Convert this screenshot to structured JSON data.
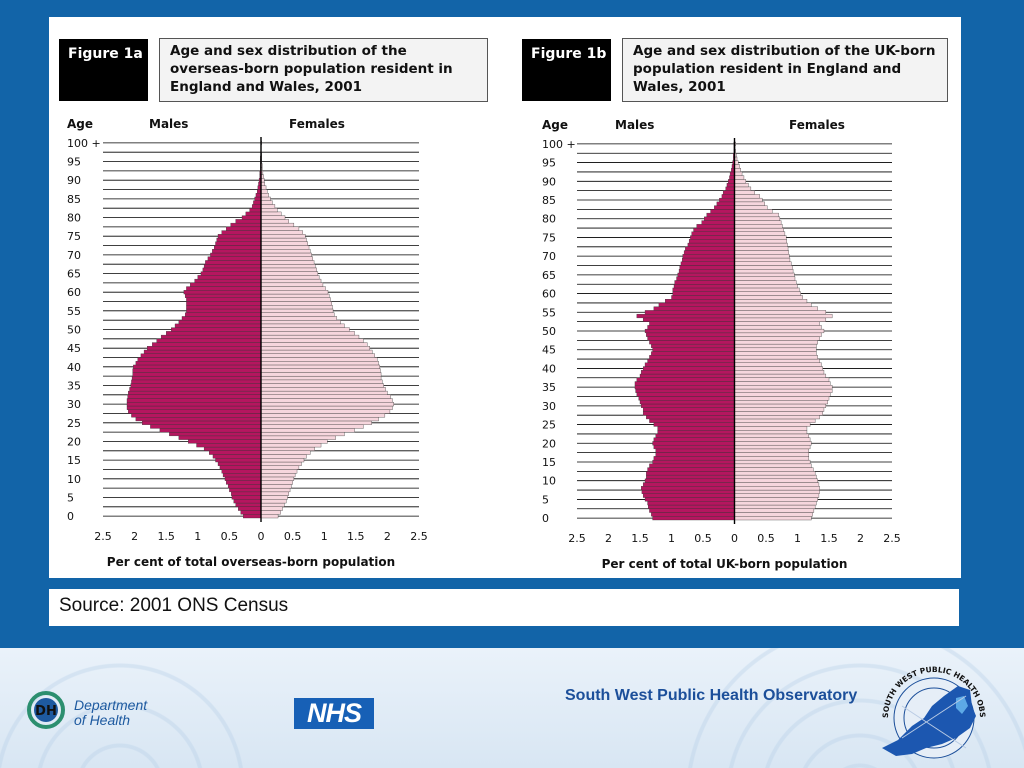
{
  "figures": [
    {
      "tag": "Figure 1a",
      "title": "Age and sex distribution of the overseas-born population resident in England and Wales, 2001"
    },
    {
      "tag": "Figure 1b",
      "title": "Age and sex distribution of the UK-born population resident in England and Wales, 2001"
    }
  ],
  "source": "Source: 2001 ONS Census",
  "footer": {
    "dh_abbr": "DH",
    "dh_line1": "Department",
    "dh_line2": "of Health",
    "nhs": "NHS",
    "observatory": "South West Public Health Observatory",
    "seal_text": "SOUTH WEST PUBLIC HEALTH OBSERVATORY"
  },
  "colors": {
    "background": "#1264a8",
    "male_fill": "#b5165f",
    "female_fill": "#f6d6dd",
    "bar_stroke": "#333333",
    "footer_text": "#1c4f9a"
  },
  "chart_data": [
    {
      "type": "bar",
      "orientation": "horizontal-population-pyramid",
      "title": "Age and sex distribution of the overseas-born population resident in England and Wales, 2001",
      "age_axis_label": "Age",
      "age_tick_labels": [
        "0",
        "5",
        "10",
        "15",
        "20",
        "25",
        "30",
        "35",
        "40",
        "45",
        "50",
        "55",
        "60",
        "65",
        "70",
        "75",
        "80",
        "85",
        "90",
        "95",
        "100 +"
      ],
      "xlabel": "Per cent of total overseas-born population",
      "x_tick_labels": [
        "2.5",
        "2",
        "1.5",
        "1",
        "0.5",
        "0",
        "0.5",
        "1",
        "1.5",
        "2",
        "2.5"
      ],
      "xlim": [
        -2.5,
        2.5
      ],
      "grid": true,
      "legend": [
        "Males",
        "Females"
      ],
      "age_groups": "single years 0 to 100+",
      "series": [
        {
          "name": "Males",
          "values": [
            0.28,
            0.32,
            0.36,
            0.4,
            0.43,
            0.46,
            0.47,
            0.5,
            0.52,
            0.55,
            0.57,
            0.6,
            0.62,
            0.65,
            0.68,
            0.72,
            0.76,
            0.82,
            0.9,
            1.02,
            1.15,
            1.3,
            1.45,
            1.6,
            1.75,
            1.88,
            1.98,
            2.05,
            2.1,
            2.12,
            2.12,
            2.12,
            2.11,
            2.1,
            2.08,
            2.06,
            2.05,
            2.04,
            2.03,
            2.03,
            2.02,
            1.98,
            1.95,
            1.9,
            1.85,
            1.8,
            1.72,
            1.65,
            1.58,
            1.5,
            1.42,
            1.36,
            1.3,
            1.25,
            1.2,
            1.18,
            1.18,
            1.18,
            1.18,
            1.2,
            1.22,
            1.18,
            1.12,
            1.05,
            1.0,
            0.95,
            0.92,
            0.9,
            0.88,
            0.84,
            0.8,
            0.77,
            0.74,
            0.72,
            0.7,
            0.68,
            0.62,
            0.55,
            0.48,
            0.4,
            0.3,
            0.24,
            0.18,
            0.14,
            0.12,
            0.1,
            0.08,
            0.06,
            0.05,
            0.04,
            0.03,
            0.02,
            0.02,
            0.01,
            0.01,
            0.01,
            0.01,
            0.0,
            0.0,
            0.0,
            0.0
          ]
        },
        {
          "name": "Females",
          "values": [
            0.27,
            0.31,
            0.34,
            0.37,
            0.4,
            0.42,
            0.44,
            0.46,
            0.48,
            0.5,
            0.52,
            0.54,
            0.57,
            0.6,
            0.64,
            0.68,
            0.72,
            0.78,
            0.85,
            0.95,
            1.05,
            1.18,
            1.32,
            1.48,
            1.62,
            1.75,
            1.86,
            1.96,
            2.04,
            2.08,
            2.1,
            2.08,
            2.05,
            2.0,
            1.97,
            1.94,
            1.92,
            1.9,
            1.9,
            1.89,
            1.88,
            1.86,
            1.84,
            1.8,
            1.76,
            1.72,
            1.68,
            1.62,
            1.55,
            1.48,
            1.4,
            1.32,
            1.26,
            1.2,
            1.16,
            1.14,
            1.13,
            1.12,
            1.1,
            1.08,
            1.06,
            1.02,
            0.98,
            0.95,
            0.92,
            0.9,
            0.88,
            0.86,
            0.84,
            0.82,
            0.8,
            0.78,
            0.76,
            0.74,
            0.72,
            0.7,
            0.66,
            0.6,
            0.52,
            0.44,
            0.38,
            0.32,
            0.26,
            0.22,
            0.18,
            0.15,
            0.12,
            0.1,
            0.08,
            0.06,
            0.05,
            0.04,
            0.03,
            0.02,
            0.02,
            0.01,
            0.01,
            0.01,
            0.0,
            0.0,
            0.01
          ]
        }
      ]
    },
    {
      "type": "bar",
      "orientation": "horizontal-population-pyramid",
      "title": "Age and sex distribution of the UK-born population resident in England and Wales, 2001",
      "age_axis_label": "Age",
      "age_tick_labels": [
        "0",
        "5",
        "10",
        "15",
        "20",
        "25",
        "30",
        "35",
        "40",
        "45",
        "50",
        "55",
        "60",
        "65",
        "70",
        "75",
        "80",
        "85",
        "90",
        "95",
        "100 +"
      ],
      "xlabel": "Per cent of total UK-born population",
      "x_tick_labels": [
        "2.5",
        "2",
        "1.5",
        "1",
        "0.5",
        "0",
        "0.5",
        "1",
        "1.5",
        "2",
        "2.5"
      ],
      "xlim": [
        -2.5,
        2.5
      ],
      "grid": true,
      "legend": [
        "Males",
        "Females"
      ],
      "age_groups": "single years 0 to 100+",
      "series": [
        {
          "name": "Males",
          "values": [
            1.3,
            1.32,
            1.35,
            1.37,
            1.38,
            1.42,
            1.45,
            1.47,
            1.48,
            1.45,
            1.42,
            1.4,
            1.4,
            1.38,
            1.35,
            1.3,
            1.28,
            1.25,
            1.25,
            1.28,
            1.3,
            1.28,
            1.25,
            1.22,
            1.22,
            1.28,
            1.35,
            1.4,
            1.45,
            1.45,
            1.48,
            1.5,
            1.52,
            1.55,
            1.57,
            1.58,
            1.58,
            1.55,
            1.5,
            1.48,
            1.45,
            1.42,
            1.38,
            1.35,
            1.32,
            1.3,
            1.32,
            1.35,
            1.38,
            1.4,
            1.42,
            1.38,
            1.35,
            1.45,
            1.55,
            1.42,
            1.28,
            1.2,
            1.1,
            1.0,
            0.98,
            0.98,
            0.96,
            0.95,
            0.92,
            0.9,
            0.88,
            0.87,
            0.85,
            0.83,
            0.82,
            0.8,
            0.78,
            0.74,
            0.72,
            0.7,
            0.68,
            0.65,
            0.6,
            0.52,
            0.48,
            0.44,
            0.38,
            0.32,
            0.28,
            0.24,
            0.2,
            0.18,
            0.14,
            0.12,
            0.1,
            0.08,
            0.07,
            0.05,
            0.04,
            0.03,
            0.02,
            0.02,
            0.01,
            0.01,
            0.01
          ]
        },
        {
          "name": "Females",
          "values": [
            1.22,
            1.24,
            1.26,
            1.28,
            1.3,
            1.32,
            1.34,
            1.35,
            1.35,
            1.34,
            1.32,
            1.3,
            1.28,
            1.25,
            1.22,
            1.2,
            1.18,
            1.18,
            1.18,
            1.2,
            1.22,
            1.2,
            1.18,
            1.15,
            1.15,
            1.2,
            1.28,
            1.35,
            1.4,
            1.42,
            1.45,
            1.48,
            1.5,
            1.52,
            1.55,
            1.55,
            1.52,
            1.5,
            1.45,
            1.42,
            1.4,
            1.38,
            1.35,
            1.32,
            1.3,
            1.3,
            1.3,
            1.32,
            1.35,
            1.38,
            1.42,
            1.38,
            1.35,
            1.45,
            1.55,
            1.45,
            1.32,
            1.22,
            1.15,
            1.08,
            1.05,
            1.03,
            1.0,
            0.98,
            0.96,
            0.95,
            0.93,
            0.92,
            0.9,
            0.88,
            0.87,
            0.86,
            0.85,
            0.84,
            0.83,
            0.82,
            0.8,
            0.78,
            0.76,
            0.74,
            0.72,
            0.7,
            0.6,
            0.52,
            0.48,
            0.44,
            0.4,
            0.32,
            0.26,
            0.22,
            0.18,
            0.15,
            0.12,
            0.1,
            0.08,
            0.06,
            0.04,
            0.03,
            0.02,
            0.01,
            0.02
          ]
        }
      ]
    }
  ]
}
